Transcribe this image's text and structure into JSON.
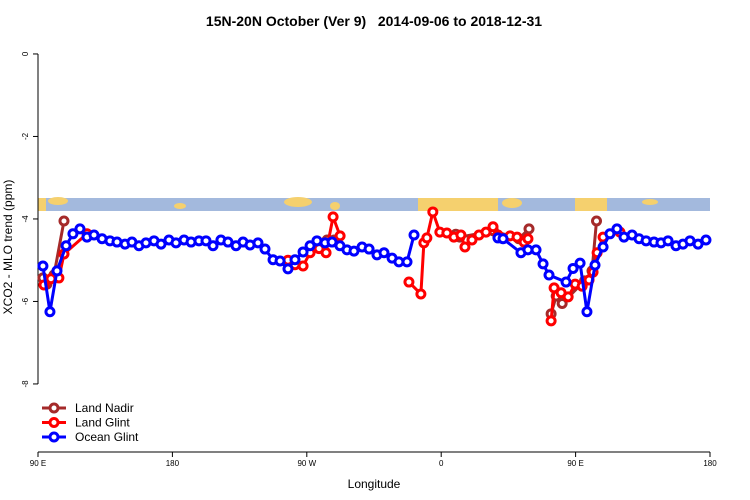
{
  "chart_data": {
    "type": "line",
    "title": "15N-20N October (Ver 9)   2014-09-06 to 2018-12-31",
    "x_label": "Longitude",
    "y_label": "XCO2 - MLO trend (ppm)",
    "xlim": [
      90,
      540
    ],
    "ylim": [
      -9.65,
      0.29
    ],
    "xticks": [
      {
        "value": 90,
        "label": "90 E"
      },
      180,
      {
        "value": 270,
        "label": "90 W"
      },
      {
        "value": 360,
        "label": "0"
      },
      {
        "value": 450,
        "label": "90 E"
      },
      {
        "value": 540,
        "label": "180"
      }
    ],
    "yticks": [
      0,
      -2,
      -4,
      -6,
      -8
    ],
    "legend": "bottomleft",
    "series": [
      {
        "name": "Land Nadir",
        "color": "#a52a2a",
        "x": [
          93.3,
          96.0,
          100.7,
          107.4,
          null,
          283.6,
          288.3,
          null,
          369.8,
          372.5,
          395.0,
          412.0,
          418.8,
          null,
          433.6,
          437.0,
          441.0,
          456.0,
          461.0,
          464.0
        ],
        "values": [
          -5.43,
          -5.58,
          -5.36,
          -4.05,
          null,
          -4.51,
          -4.51,
          null,
          -4.37,
          -4.44,
          -4.29,
          -4.48,
          -4.24,
          null,
          -6.3,
          -5.87,
          -6.05,
          -5.5,
          -5.26,
          -4.05
        ]
      },
      {
        "name": "Land Glint",
        "color": "#ff0000",
        "x": [
          94.0,
          98.7,
          104.0,
          107.4,
          122.8,
          null,
          257.4,
          262.1,
          267.5,
          272.2,
          278.2,
          282.9,
          287.6,
          292.3,
          null,
          338.4,
          346.4,
          348.4,
          350.4,
          354.4,
          359.1,
          363.8,
          368.5,
          373.2,
          375.9,
          380.6,
          385.3,
          390.0,
          394.7,
          398.0,
          406.1,
          410.8,
          415.5,
          418.1,
          null,
          433.6,
          435.6,
          440.3,
          445.0,
          449.7,
          454.4,
          459.0,
          461.7,
          464.4,
          468.4,
          479.7
        ],
        "values": [
          -5.6,
          -5.45,
          -5.43,
          -4.85,
          -4.36,
          null,
          -5.0,
          -5.11,
          -5.14,
          -4.82,
          -4.72,
          -4.82,
          -3.95,
          -4.41,
          null,
          -5.53,
          -5.82,
          -4.58,
          -4.46,
          -3.83,
          -4.32,
          -4.34,
          -4.44,
          -4.39,
          -4.68,
          -4.51,
          -4.39,
          -4.32,
          -4.19,
          -4.39,
          -4.41,
          -4.44,
          -4.56,
          -4.48,
          null,
          -6.47,
          -5.67,
          -5.79,
          -5.89,
          -5.58,
          -5.63,
          -5.48,
          -5.29,
          -4.82,
          -4.44,
          -4.32
        ]
      },
      {
        "name": "Ocean Glint",
        "color": "#0000ff",
        "x": [
          93.3,
          98.0,
          102.7,
          108.8,
          113.4,
          118.1,
          122.8,
          127.5,
          132.9,
          138.2,
          142.9,
          148.3,
          152.9,
          157.6,
          162.3,
          167.7,
          172.4,
          177.7,
          182.4,
          187.8,
          192.5,
          197.8,
          202.5,
          207.2,
          212.5,
          217.2,
          222.6,
          227.3,
          232.0,
          237.3,
          242.0,
          247.4,
          252.1,
          257.4,
          262.1,
          267.5,
          272.2,
          276.8,
          282.2,
          286.9,
          292.2,
          296.9,
          301.6,
          307.0,
          311.7,
          317.0,
          321.7,
          327.1,
          331.7,
          337.1,
          341.8,
          null,
          398.0,
          401.4,
          413.4,
          418.1,
          423.5,
          428.2,
          432.2,
          443.6,
          448.3,
          453.0,
          457.6,
          463.0,
          468.4,
          473.0,
          477.7,
          482.4,
          487.8,
          492.5,
          497.2,
          502.5,
          507.2,
          511.9,
          517.2,
          521.9,
          526.6,
          532.0,
          537.3
        ],
        "values": [
          -5.14,
          -6.25,
          -5.26,
          -4.65,
          -4.36,
          -4.24,
          -4.44,
          -4.39,
          -4.48,
          -4.53,
          -4.56,
          -4.61,
          -4.56,
          -4.65,
          -4.58,
          -4.53,
          -4.61,
          -4.51,
          -4.58,
          -4.51,
          -4.56,
          -4.53,
          -4.53,
          -4.65,
          -4.51,
          -4.56,
          -4.65,
          -4.56,
          -4.63,
          -4.58,
          -4.73,
          -4.99,
          -5.02,
          -5.21,
          -4.99,
          -4.8,
          -4.65,
          -4.53,
          -4.58,
          -4.56,
          -4.65,
          -4.75,
          -4.78,
          -4.68,
          -4.73,
          -4.87,
          -4.82,
          -4.95,
          -5.04,
          -5.04,
          -4.39,
          null,
          -4.46,
          -4.48,
          -4.82,
          -4.75,
          -4.75,
          -5.09,
          -5.36,
          -5.53,
          -5.2,
          -5.07,
          -6.25,
          -5.12,
          -4.68,
          -4.36,
          -4.24,
          -4.44,
          -4.39,
          -4.48,
          -4.53,
          -4.56,
          -4.58,
          -4.53,
          -4.65,
          -4.61,
          -4.53,
          -4.61,
          -4.51
        ]
      }
    ]
  }
}
